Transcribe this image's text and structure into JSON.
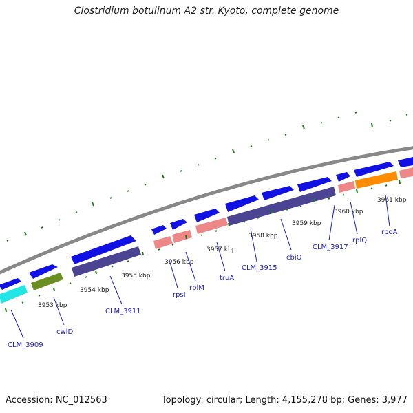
{
  "title": "Clostridium botulinum A2 str. Kyoto, complete genome",
  "footer": {
    "accession": "Accession: NC_012563",
    "summary": "Topology: circular; Length: 4,155,278 bp; Genes: 3,977"
  },
  "colors": {
    "backbone": "#888888",
    "cds_forward": "#1111e6",
    "cds_reverse_dark": "#4a4492",
    "rrna_pink": "#ee8888",
    "green_feature": "#6b8e23",
    "cyan_feature": "#22e6e6",
    "orange_feature": "#ff8c00",
    "ticks": "#1b7a1b",
    "label_text": "#1c1ccc"
  },
  "scale_labels": [
    "3953 kbp",
    "3954 kbp",
    "3955 kbp",
    "3956 kbp",
    "3957 kbp",
    "3958 kbp",
    "3959 kbp",
    "3960 kbp",
    "3961 kbp"
  ],
  "gene_labels": [
    "CLM_3909",
    "cwlD",
    "CLM_3911",
    "rpsI",
    "rplM",
    "truA",
    "CLM_3915",
    "cbiO",
    "CLM_3917",
    "rplQ",
    "rpoA"
  ]
}
